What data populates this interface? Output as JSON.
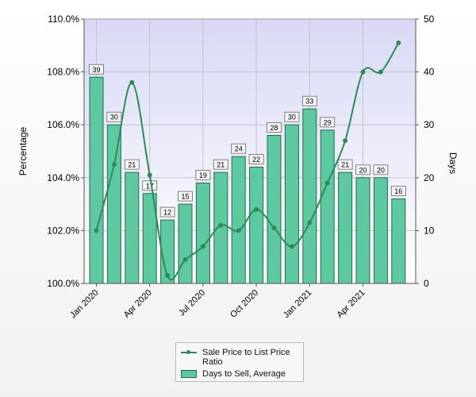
{
  "chart_data": {
    "type": "bar",
    "categories": [
      "Jan 2020",
      "Feb 2020",
      "Mar 2020",
      "Apr 2020",
      "May 2020",
      "Jun 2020",
      "Jul 2020",
      "Aug 2020",
      "Sep 2020",
      "Oct 2020",
      "Nov 2020",
      "Dec 2020",
      "Jan 2021",
      "Feb 2021",
      "Mar 2021",
      "Apr 2021",
      "May 2021",
      "Jun 2021"
    ],
    "x_tick_labels": [
      "Jan 2020",
      "Apr 2020",
      "Jul 2020",
      "Oct 2020",
      "Jan 2021",
      "Apr 2021"
    ],
    "ylabel": "Percentage",
    "y2label": "Days",
    "ylim": [
      100,
      110
    ],
    "y2lim": [
      0,
      50
    ],
    "y_ticks": [
      "100.0%",
      "102.0%",
      "104.0%",
      "106.0%",
      "108.0%",
      "110.0%"
    ],
    "y2_ticks": [
      "0",
      "10",
      "20",
      "30",
      "40",
      "50"
    ],
    "grid": true,
    "legend_position": "bottom-center",
    "series": [
      {
        "name": "Sale Price to List Price Ratio",
        "type": "line",
        "axis": "left",
        "values": [
          102.0,
          104.5,
          107.6,
          104.1,
          100.3,
          100.9,
          101.4,
          102.2,
          102.0,
          102.8,
          102.1,
          101.4,
          102.3,
          103.8,
          105.4,
          108.0,
          108.0,
          109.1
        ],
        "color": "#2e8b57"
      },
      {
        "name": "Days to Sell, Average",
        "type": "bar",
        "axis": "right",
        "values": [
          39,
          30,
          21,
          17,
          12,
          15,
          19,
          21,
          24,
          22,
          28,
          30,
          33,
          29,
          21,
          20,
          20,
          16
        ],
        "color": "#5ec8a0"
      }
    ]
  }
}
